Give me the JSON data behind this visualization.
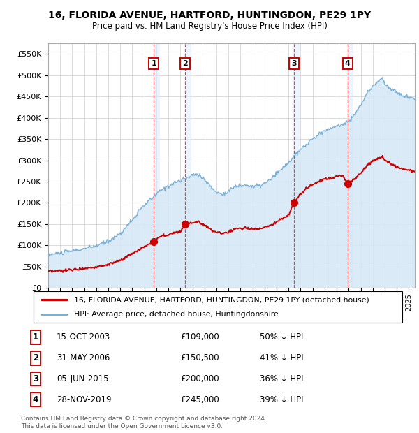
{
  "title": "16, FLORIDA AVENUE, HARTFORD, HUNTINGDON, PE29 1PY",
  "subtitle": "Price paid vs. HM Land Registry's House Price Index (HPI)",
  "footer1": "Contains HM Land Registry data © Crown copyright and database right 2024.",
  "footer2": "This data is licensed under the Open Government Licence v3.0.",
  "legend_label_red": "16, FLORIDA AVENUE, HARTFORD, HUNTINGDON, PE29 1PY (detached house)",
  "legend_label_blue": "HPI: Average price, detached house, Huntingdonshire",
  "table": [
    {
      "num": 1,
      "date": "15-OCT-2003",
      "price": "£109,000",
      "pct": "50% ↓ HPI"
    },
    {
      "num": 2,
      "date": "31-MAY-2006",
      "price": "£150,500",
      "pct": "41% ↓ HPI"
    },
    {
      "num": 3,
      "date": "05-JUN-2015",
      "price": "£200,000",
      "pct": "36% ↓ HPI"
    },
    {
      "num": 4,
      "date": "28-NOV-2019",
      "price": "£245,000",
      "pct": "39% ↓ HPI"
    }
  ],
  "sale_dates_decimal": [
    2003.79,
    2006.41,
    2015.43,
    2019.91
  ],
  "sale_prices": [
    109000,
    150500,
    200000,
    245000
  ],
  "red_color": "#cc0000",
  "blue_color": "#7ab0d4",
  "blue_fill": "#d6e8f5",
  "grid_color": "#cccccc",
  "ylim": [
    0,
    575000
  ],
  "xlim_start": 1995.0,
  "xlim_end": 2025.5,
  "hpi_points": [
    [
      1995.0,
      78000
    ],
    [
      1996.0,
      82000
    ],
    [
      1997.0,
      87000
    ],
    [
      1998.0,
      92000
    ],
    [
      1999.0,
      99000
    ],
    [
      2000.0,
      110000
    ],
    [
      2001.0,
      128000
    ],
    [
      2002.0,
      160000
    ],
    [
      2003.0,
      195000
    ],
    [
      2004.0,
      220000
    ],
    [
      2004.5,
      232000
    ],
    [
      2005.0,
      240000
    ],
    [
      2005.5,
      248000
    ],
    [
      2006.0,
      252000
    ],
    [
      2006.5,
      258000
    ],
    [
      2007.0,
      265000
    ],
    [
      2007.5,
      268000
    ],
    [
      2008.0,
      255000
    ],
    [
      2008.5,
      238000
    ],
    [
      2009.0,
      225000
    ],
    [
      2009.5,
      220000
    ],
    [
      2010.0,
      228000
    ],
    [
      2010.5,
      238000
    ],
    [
      2011.0,
      240000
    ],
    [
      2011.5,
      242000
    ],
    [
      2012.0,
      238000
    ],
    [
      2012.5,
      240000
    ],
    [
      2013.0,
      245000
    ],
    [
      2013.5,
      255000
    ],
    [
      2014.0,
      268000
    ],
    [
      2014.5,
      282000
    ],
    [
      2015.0,
      295000
    ],
    [
      2015.5,
      310000
    ],
    [
      2016.0,
      325000
    ],
    [
      2016.5,
      338000
    ],
    [
      2017.0,
      350000
    ],
    [
      2017.5,
      360000
    ],
    [
      2018.0,
      370000
    ],
    [
      2018.5,
      375000
    ],
    [
      2019.0,
      380000
    ],
    [
      2019.5,
      385000
    ],
    [
      2020.0,
      392000
    ],
    [
      2020.5,
      408000
    ],
    [
      2021.0,
      430000
    ],
    [
      2021.5,
      455000
    ],
    [
      2022.0,
      475000
    ],
    [
      2022.5,
      488000
    ],
    [
      2022.8,
      492000
    ],
    [
      2023.0,
      480000
    ],
    [
      2023.5,
      468000
    ],
    [
      2024.0,
      460000
    ],
    [
      2024.5,
      452000
    ],
    [
      2025.0,
      448000
    ],
    [
      2025.5,
      445000
    ]
  ],
  "red_points_before_1": [
    [
      1995.0,
      38000
    ],
    [
      1996.0,
      40000
    ],
    [
      1997.0,
      43000
    ],
    [
      1998.0,
      46000
    ],
    [
      1999.0,
      49500
    ],
    [
      2000.0,
      55000
    ],
    [
      2001.0,
      64000
    ],
    [
      2002.0,
      80000
    ],
    [
      2003.0,
      97000
    ],
    [
      2003.79,
      109000
    ]
  ],
  "red_points_1_to_2": [
    [
      2003.79,
      109000
    ],
    [
      2004.0,
      115000
    ],
    [
      2004.5,
      122000
    ],
    [
      2005.0,
      125000
    ],
    [
      2005.5,
      130000
    ],
    [
      2006.0,
      132000
    ],
    [
      2006.41,
      150500
    ]
  ],
  "red_points_2_to_3": [
    [
      2006.41,
      150500
    ],
    [
      2007.0,
      154000
    ],
    [
      2007.5,
      155500
    ],
    [
      2008.0,
      148000
    ],
    [
      2008.5,
      138000
    ],
    [
      2009.0,
      131000
    ],
    [
      2009.5,
      128000
    ],
    [
      2010.0,
      132000
    ],
    [
      2010.5,
      138000
    ],
    [
      2011.0,
      140000
    ],
    [
      2011.5,
      141000
    ],
    [
      2012.0,
      138000
    ],
    [
      2012.5,
      140000
    ],
    [
      2013.0,
      142000
    ],
    [
      2013.5,
      148000
    ],
    [
      2014.0,
      155000
    ],
    [
      2014.5,
      163000
    ],
    [
      2015.0,
      171000
    ],
    [
      2015.43,
      200000
    ]
  ],
  "red_points_3_to_4": [
    [
      2015.43,
      200000
    ],
    [
      2016.0,
      220000
    ],
    [
      2016.5,
      235000
    ],
    [
      2017.0,
      242000
    ],
    [
      2017.5,
      250000
    ],
    [
      2018.0,
      255000
    ],
    [
      2018.5,
      258000
    ],
    [
      2019.0,
      262000
    ],
    [
      2019.5,
      265000
    ],
    [
      2019.91,
      245000
    ]
  ],
  "red_points_after_4": [
    [
      2019.91,
      245000
    ],
    [
      2020.0,
      246000
    ],
    [
      2020.5,
      256000
    ],
    [
      2021.0,
      270000
    ],
    [
      2021.5,
      286000
    ],
    [
      2022.0,
      298000
    ],
    [
      2022.5,
      306000
    ],
    [
      2022.8,
      308000
    ],
    [
      2023.0,
      300000
    ],
    [
      2023.5,
      291000
    ],
    [
      2024.0,
      285000
    ],
    [
      2024.5,
      280000
    ],
    [
      2025.0,
      277000
    ],
    [
      2025.5,
      274000
    ]
  ]
}
